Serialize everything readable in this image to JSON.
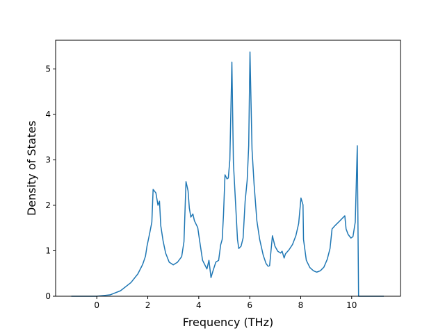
{
  "chart_data": {
    "type": "line",
    "x_label": "Frequency (THz)",
    "y_label": "Density of States",
    "x": [
      -1.0,
      0,
      0.52,
      0.93,
      1.34,
      1.61,
      1.8,
      1.91,
      1.97,
      2.08,
      2.16,
      2.21,
      2.32,
      2.4,
      2.46,
      2.51,
      2.6,
      2.7,
      2.84,
      3.0,
      3.17,
      3.33,
      3.42,
      3.5,
      3.58,
      3.63,
      3.69,
      3.77,
      3.83,
      3.96,
      4.04,
      4.15,
      4.32,
      4.4,
      4.48,
      4.56,
      4.67,
      4.78,
      4.86,
      4.92,
      4.97,
      5.03,
      5.11,
      5.16,
      5.22,
      5.3,
      5.36,
      5.44,
      5.52,
      5.57,
      5.66,
      5.74,
      5.82,
      5.9,
      5.96,
      6.01,
      6.09,
      6.17,
      6.28,
      6.39,
      6.53,
      6.64,
      6.72,
      6.78,
      6.89,
      6.99,
      7.1,
      7.21,
      7.27,
      7.35,
      7.4,
      7.54,
      7.68,
      7.81,
      7.92,
      8.01,
      8.09,
      8.11,
      8.22,
      8.36,
      8.5,
      8.63,
      8.77,
      8.91,
      9.04,
      9.15,
      9.23,
      9.34,
      9.54,
      9.73,
      9.78,
      9.86,
      9.97,
      10.05,
      10.14,
      10.22,
      10.27,
      11.26
    ],
    "series": [
      {
        "color": "#1f77b4",
        "values": [
          0,
          0,
          0.03,
          0.12,
          0.3,
          0.49,
          0.7,
          0.88,
          1.1,
          1.4,
          1.63,
          2.35,
          2.27,
          2.0,
          2.09,
          1.55,
          1.22,
          0.95,
          0.75,
          0.69,
          0.75,
          0.87,
          1.2,
          2.52,
          2.32,
          1.94,
          1.74,
          1.81,
          1.66,
          1.51,
          1.2,
          0.79,
          0.6,
          0.79,
          0.41,
          0.56,
          0.75,
          0.79,
          1.13,
          1.25,
          1.78,
          2.67,
          2.58,
          2.6,
          3.0,
          5.15,
          2.93,
          2.09,
          1.25,
          1.05,
          1.1,
          1.28,
          2.09,
          2.55,
          3.31,
          5.37,
          3.23,
          2.47,
          1.66,
          1.25,
          0.9,
          0.72,
          0.66,
          0.67,
          1.33,
          1.1,
          0.99,
          0.95,
          0.99,
          0.84,
          0.93,
          1.02,
          1.14,
          1.33,
          1.6,
          2.16,
          2.01,
          1.25,
          0.79,
          0.63,
          0.56,
          0.53,
          0.56,
          0.64,
          0.81,
          1.05,
          1.48,
          1.55,
          1.66,
          1.77,
          1.48,
          1.36,
          1.28,
          1.31,
          1.63,
          3.31,
          0,
          0
        ]
      }
    ],
    "xlim": [
      -1.615,
      11.915
    ],
    "ylim": [
      0,
      5.63
    ],
    "xticks": [
      0,
      2,
      4,
      6,
      8,
      10
    ],
    "yticks": [
      0,
      1,
      2,
      3,
      4,
      5
    ]
  }
}
